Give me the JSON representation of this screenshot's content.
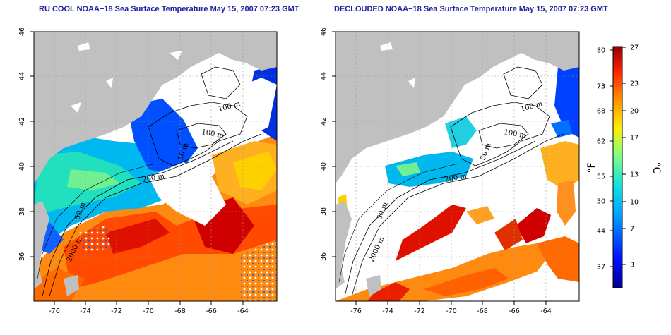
{
  "titles": {
    "left": "RU COOL NOAA−18 Sea Surface Temperature May 15, 2007 07:23 GMT",
    "right": "DECLOUDED NOAA−18 Sea Surface Temperature May 15, 2007 07:23 GMT"
  },
  "axes": {
    "lon_ticks": [
      "-76",
      "-74",
      "-72",
      "-70",
      "-68",
      "-66",
      "-64"
    ],
    "lat_ticks": [
      "36",
      "38",
      "40",
      "42",
      "44",
      "46"
    ]
  },
  "contour_labels": [
    "100 m",
    "100 m",
    "50 m",
    "200 m",
    "50 m",
    "2000 m"
  ],
  "colorbar": {
    "unit_f": "°F",
    "unit_c": "°C",
    "fahrenheit": [
      "80",
      "73",
      "68",
      "62",
      "55",
      "50",
      "44",
      "37"
    ],
    "celsius": [
      "27",
      "23",
      "20",
      "17",
      "13",
      "10",
      "7",
      "3"
    ]
  },
  "colors": {
    "land": "#c0c0c0",
    "cloud": "#ffffff",
    "title": "#1f1fa0"
  }
}
